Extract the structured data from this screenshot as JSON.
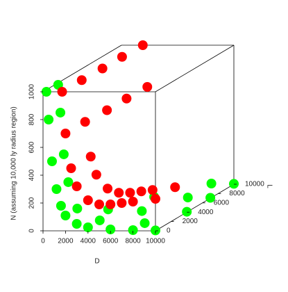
{
  "chart_data": {
    "type": "scatter3d",
    "xlabel": "D",
    "ylabel": "L",
    "zlabel": "N (assuming 10,000 ly radius region)",
    "xlim": [
      0,
      10000
    ],
    "ylim": [
      0,
      10000
    ],
    "zlim": [
      0,
      1000
    ],
    "xticks": [
      0,
      2000,
      4000,
      6000,
      8000,
      10000
    ],
    "yticks": [
      0,
      2000,
      4000,
      6000,
      8000,
      10000
    ],
    "zticks": [
      0,
      200,
      400,
      600,
      800,
      1000
    ],
    "series": [
      {
        "color": "#00ff00",
        "x": [
          300,
          500,
          800,
          1200,
          1600,
          2000,
          3000,
          4000,
          6000,
          8000,
          10000,
          300,
          500,
          800,
          1200,
          2000,
          4000,
          8000,
          3000,
          6000,
          10000,
          5000,
          8000,
          10000,
          8000,
          10000
        ],
        "y": [
          0,
          0,
          0,
          0,
          0,
          0,
          0,
          0,
          0,
          0,
          0,
          1500,
          1500,
          1500,
          1500,
          1500,
          1500,
          1500,
          4000,
          4000,
          4000,
          7000,
          7000,
          7000,
          10000,
          10000
        ],
        "z": [
          1000,
          800,
          500,
          300,
          180,
          110,
          50,
          25,
          10,
          5,
          3,
          1000,
          800,
          500,
          300,
          110,
          25,
          5,
          20,
          8,
          3,
          10,
          5,
          3,
          5,
          3
        ]
      },
      {
        "color": "#ff0000",
        "x": [
          1700,
          2000,
          2500,
          3000,
          4000,
          5000,
          6000,
          7000,
          8000,
          10000,
          1700,
          2000,
          2500,
          3000,
          4000,
          5000,
          6000,
          7000,
          8000,
          10000,
          1800,
          2200,
          1800,
          2200,
          1900,
          2300
        ],
        "y": [
          0,
          0,
          0,
          0,
          0,
          0,
          0,
          0,
          0,
          0,
          2500,
          2500,
          2500,
          2500,
          2500,
          2500,
          2500,
          2500,
          2500,
          2500,
          5000,
          5000,
          7500,
          7500,
          10000,
          10000
        ],
        "z": [
          1000,
          700,
          450,
          320,
          220,
          190,
          190,
          200,
          210,
          230,
          1000,
          700,
          450,
          320,
          220,
          190,
          190,
          200,
          210,
          230,
          1000,
          700,
          1000,
          700,
          1000,
          700
        ]
      }
    ]
  }
}
